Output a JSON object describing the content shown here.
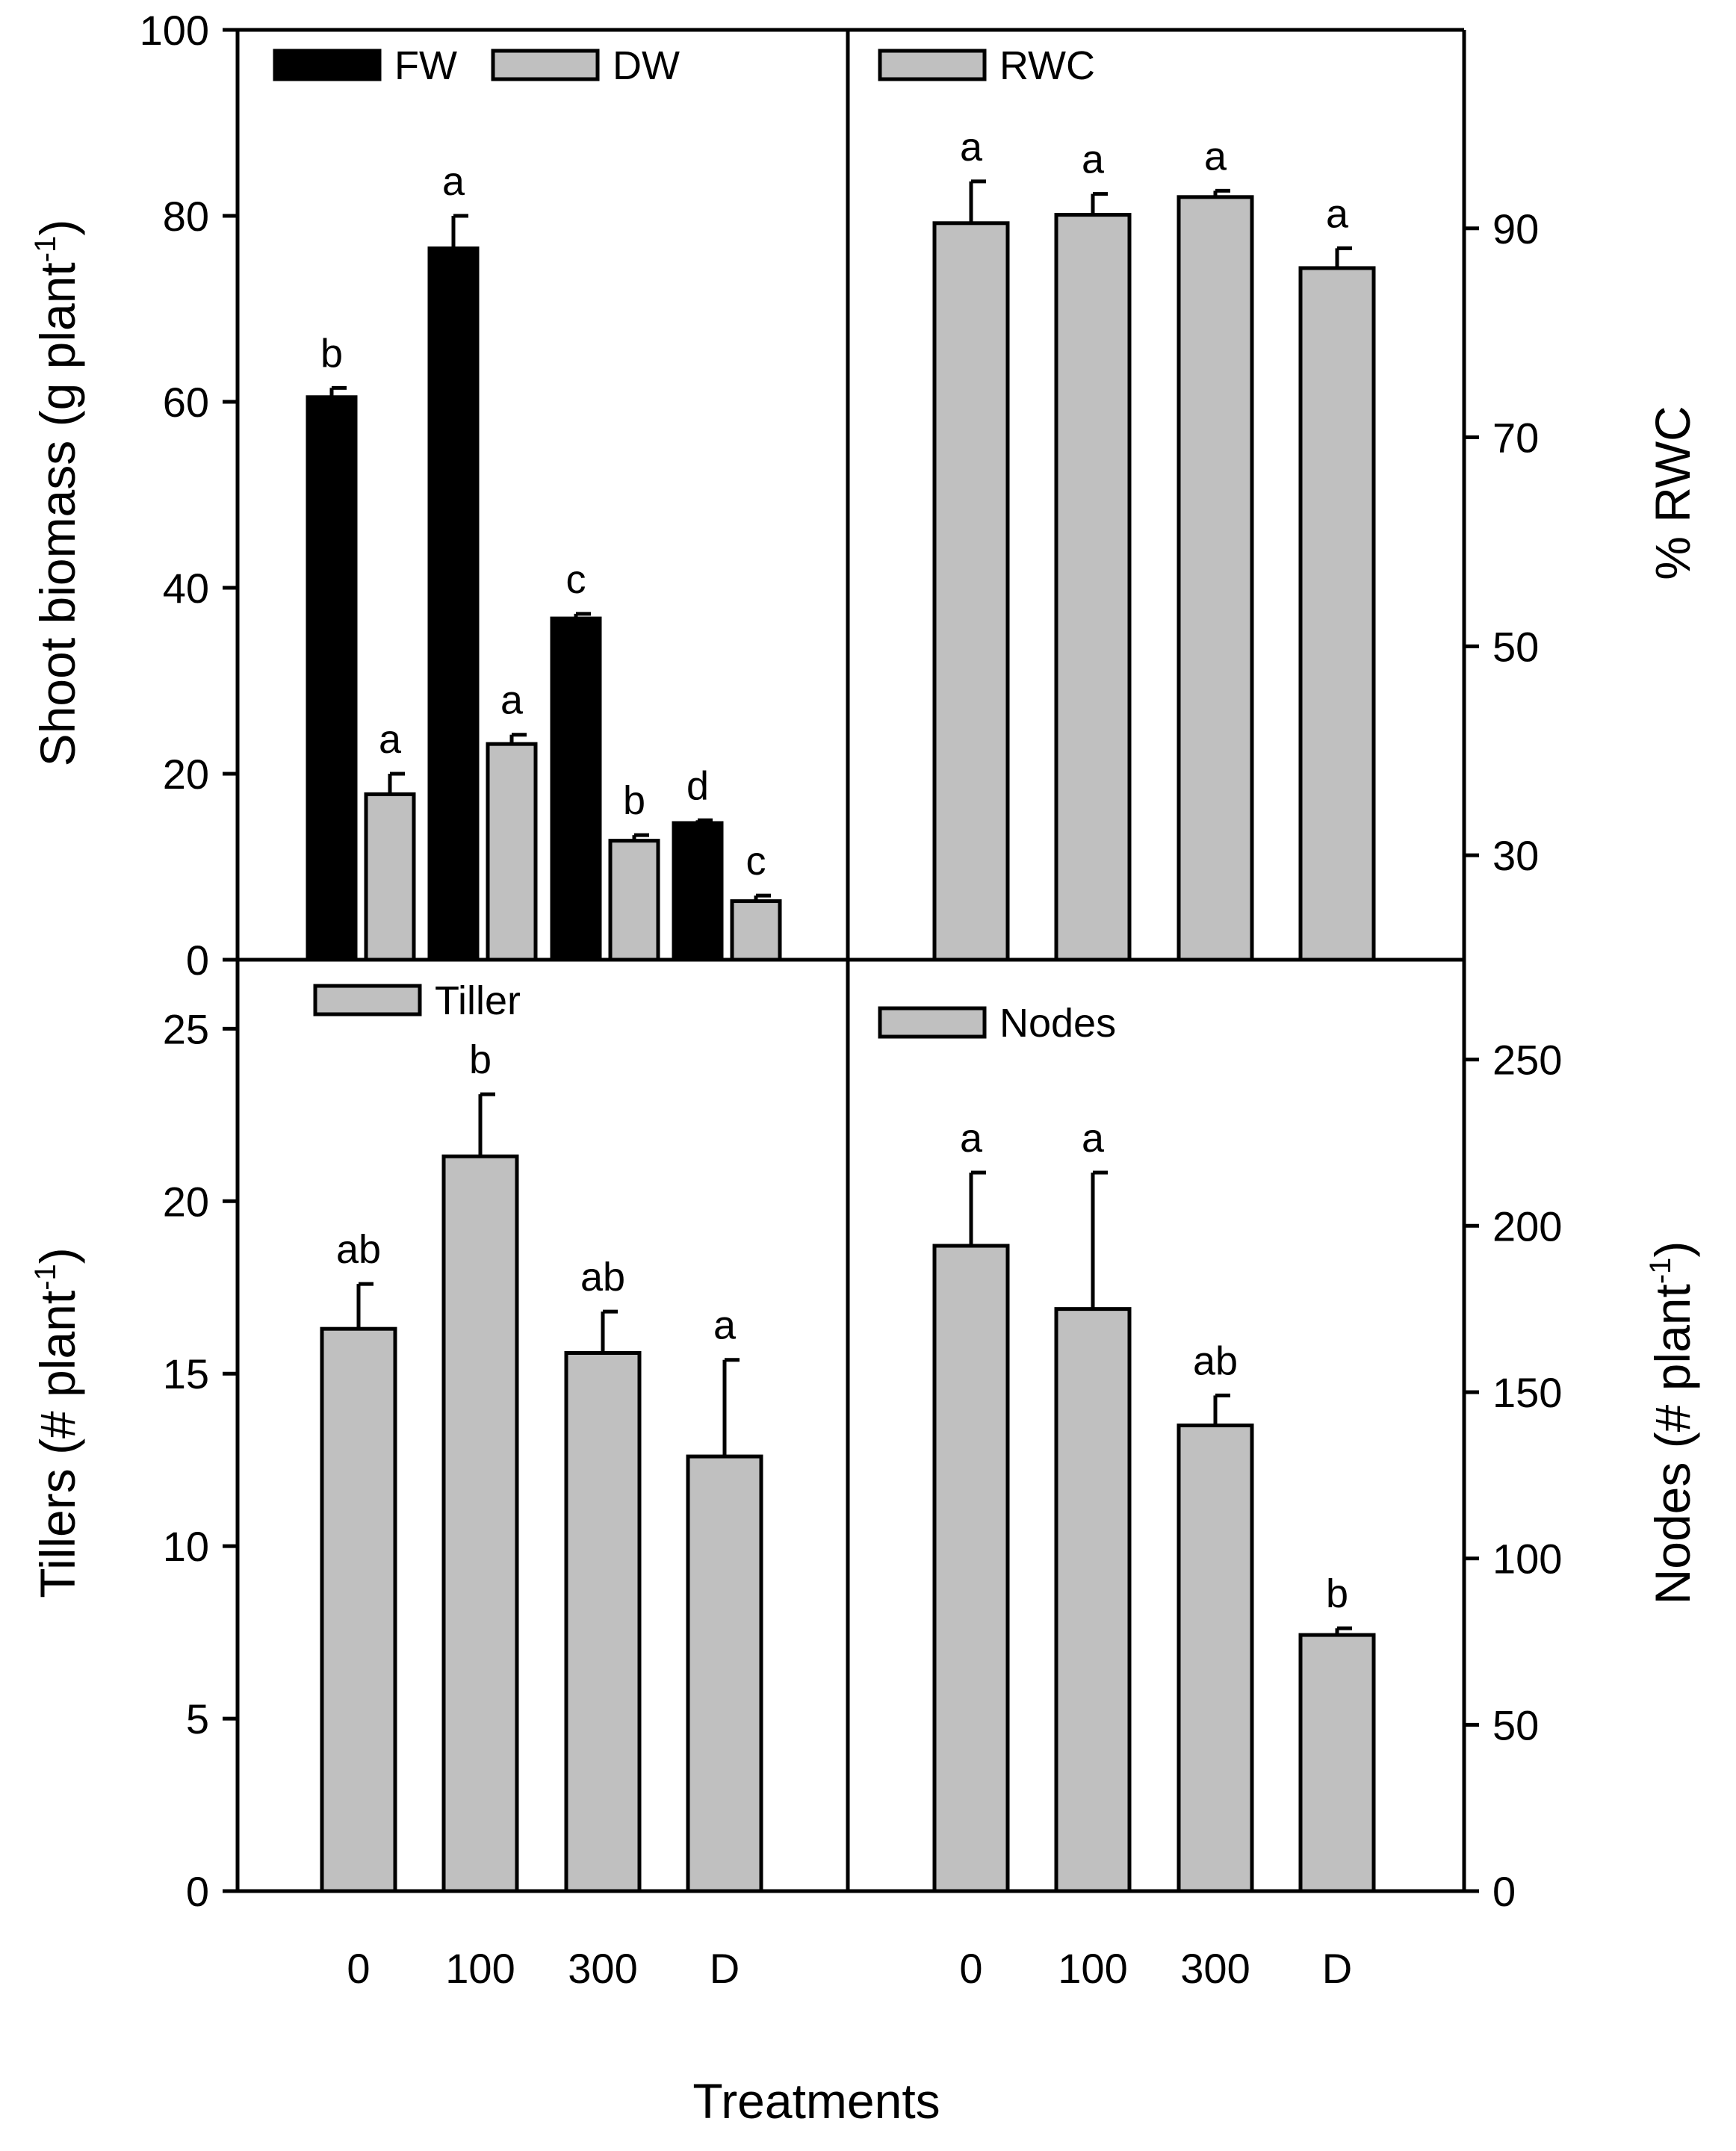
{
  "figure": {
    "xlabel": "Treatments"
  },
  "chart_data": [
    {
      "id": "biomass",
      "type": "bar",
      "categories": [
        "0",
        "100",
        "300",
        "D"
      ],
      "ylabel": "Shoot biomass (g plant",
      "ylabel_sup": "-1",
      "ylabel_end": ")",
      "ylim": [
        0,
        100
      ],
      "yticks": [
        0,
        20,
        40,
        60,
        80,
        100
      ],
      "axis_side": "left",
      "legend": "top-left",
      "series": [
        {
          "name": "FW",
          "color": "#000000",
          "values": [
            60.5,
            76.5,
            36.7,
            14.7
          ],
          "errors": [
            1.0,
            3.5,
            0.5,
            0.3
          ],
          "letters": [
            "b",
            "a",
            "c",
            "d"
          ]
        },
        {
          "name": "DW",
          "color": "#c0c0c0",
          "values": [
            17.8,
            23.2,
            12.8,
            6.3
          ],
          "errors": [
            2.2,
            1.0,
            0.6,
            0.6
          ],
          "letters": [
            "a",
            "a",
            "b",
            "c"
          ]
        }
      ]
    },
    {
      "id": "rwc",
      "type": "bar",
      "categories": [
        "0",
        "100",
        "300",
        "D"
      ],
      "ylabel": "% RWC",
      "ylim": [
        20,
        109
      ],
      "yticks": [
        30,
        50,
        70,
        90
      ],
      "axis_side": "right",
      "legend": "top-left",
      "series": [
        {
          "name": "RWC",
          "color": "#c0c0c0",
          "values": [
            90.5,
            91.3,
            93.0,
            86.2
          ],
          "errors": [
            4.0,
            2.0,
            0.6,
            1.9
          ],
          "letters": [
            "a",
            "a",
            "a",
            "a"
          ]
        }
      ]
    },
    {
      "id": "tillers",
      "type": "bar",
      "categories": [
        "0",
        "100",
        "300",
        "D"
      ],
      "ylabel": "Tillers (# plant",
      "ylabel_sup": "-1",
      "ylabel_end": ")",
      "ylim": [
        0,
        27
      ],
      "yticks": [
        0,
        5,
        10,
        15,
        20,
        25
      ],
      "axis_side": "left",
      "legend": "top-left",
      "series": [
        {
          "name": "Tiller",
          "color": "#c0c0c0",
          "values": [
            16.3,
            21.3,
            15.6,
            12.6
          ],
          "errors": [
            1.3,
            1.8,
            1.2,
            2.8
          ],
          "letters": [
            "ab",
            "b",
            "ab",
            "a"
          ]
        }
      ]
    },
    {
      "id": "nodes",
      "type": "bar",
      "categories": [
        "0",
        "100",
        "300",
        "D"
      ],
      "ylabel": "Nodes (# plant",
      "ylabel_sup": "-1",
      "ylabel_end": ")",
      "ylim": [
        0,
        280
      ],
      "yticks": [
        0,
        50,
        100,
        150,
        200,
        250
      ],
      "axis_side": "right",
      "legend": "top-left",
      "series": [
        {
          "name": "Nodes",
          "color": "#c0c0c0",
          "values": [
            194,
            175,
            140,
            77
          ],
          "errors": [
            22,
            41,
            9,
            2
          ],
          "letters": [
            "a",
            "a",
            "ab",
            "b"
          ]
        }
      ]
    }
  ]
}
